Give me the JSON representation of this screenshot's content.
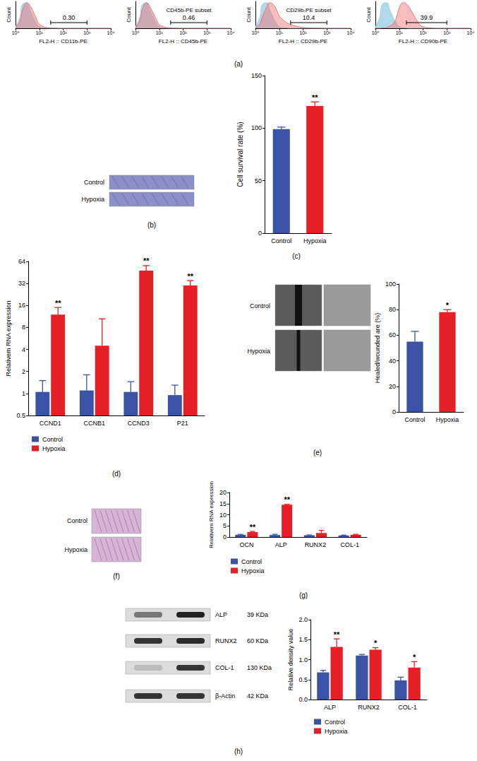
{
  "chart_data": [
    {
      "type": "area",
      "log": "x",
      "x_label": "FL2-H :: CD11b-PE",
      "y_label": "Count",
      "tick_labels": "x",
      "x": [
        1,
        1.5,
        2,
        3,
        4,
        6,
        8,
        10,
        15,
        20,
        30,
        50,
        70,
        100,
        200,
        500,
        1000,
        10000
      ],
      "xlim": [
        1,
        10000
      ],
      "xticks": [
        {
          "value": 1,
          "label": "10⁰"
        },
        {
          "value": 10,
          "label": "10¹"
        },
        {
          "value": 100,
          "label": "10²"
        },
        {
          "value": 1000,
          "label": "10³"
        },
        {
          "value": 10000,
          "label": "10⁴"
        }
      ],
      "ylim": [
        0,
        100
      ],
      "series": [
        {
          "color": "#a6d0e8",
          "values": [
            5,
            40,
            90,
            95,
            70,
            35,
            15,
            6,
            2,
            1,
            0,
            0,
            0,
            0,
            0,
            0,
            0,
            0
          ]
        },
        {
          "color": "#ef6f6f",
          "values": [
            3,
            25,
            70,
            95,
            85,
            55,
            30,
            15,
            6,
            3,
            1,
            0.5,
            0,
            0,
            0,
            0,
            0,
            0
          ]
        }
      ],
      "gate": {
        "range": [
          30,
          1000
        ],
        "label": "0.30"
      },
      "panel": "(a)"
    },
    {
      "type": "area",
      "log": "x",
      "x_label": "FL2-H :: CD45b-PE",
      "y_label": "Count",
      "tick_labels": "x",
      "x": [
        1,
        1.5,
        2,
        3,
        4,
        6,
        8,
        10,
        15,
        20,
        30,
        50,
        70,
        100,
        200,
        500,
        1000,
        10000
      ],
      "xlim": [
        1,
        10000
      ],
      "xticks": [
        {
          "value": 1,
          "label": "10⁰"
        },
        {
          "value": 10,
          "label": "10¹"
        },
        {
          "value": 100,
          "label": "10²"
        },
        {
          "value": 1000,
          "label": "10³"
        },
        {
          "value": 10000,
          "label": "10⁴"
        }
      ],
      "ylim": [
        0,
        100
      ],
      "series": [
        {
          "color": "#a6d0e8",
          "values": [
            5,
            40,
            90,
            95,
            70,
            35,
            15,
            6,
            2,
            1,
            0,
            0,
            0,
            0,
            0,
            0,
            0,
            0
          ]
        },
        {
          "color": "#ef6f6f",
          "values": [
            3,
            28,
            75,
            95,
            80,
            50,
            28,
            14,
            6,
            3,
            1.5,
            0.5,
            0.3,
            0,
            0,
            0,
            0,
            0
          ]
        }
      ],
      "gate": {
        "range": [
          30,
          1000
        ],
        "label": "0.46",
        "subset": "CD45b-PE subset"
      }
    },
    {
      "type": "area",
      "log": "x",
      "x_label": "FL2-H :: CD29b-PE",
      "y_label": "Count",
      "tick_labels": "x",
      "x": [
        1,
        1.5,
        2,
        3,
        4,
        6,
        8,
        10,
        15,
        20,
        30,
        50,
        70,
        100,
        200,
        500,
        1000,
        10000
      ],
      "xlim": [
        1,
        10000
      ],
      "xticks": [
        {
          "value": 1,
          "label": "10⁰"
        },
        {
          "value": 10,
          "label": "10¹"
        },
        {
          "value": 100,
          "label": "10²"
        },
        {
          "value": 1000,
          "label": "10³"
        },
        {
          "value": 10000,
          "label": "10⁴"
        }
      ],
      "ylim": [
        0,
        100
      ],
      "series": [
        {
          "color": "#a6d0e8",
          "values": [
            5,
            40,
            90,
            95,
            70,
            35,
            15,
            6,
            2,
            1,
            0,
            0,
            0,
            0,
            0,
            0,
            0,
            0
          ]
        },
        {
          "color": "#ef6f6f",
          "values": [
            2,
            15,
            45,
            80,
            95,
            85,
            65,
            45,
            30,
            22,
            14,
            8,
            5,
            3,
            1,
            0.5,
            0,
            0
          ]
        }
      ],
      "gate": {
        "range": [
          30,
          1000
        ],
        "label": "10.4",
        "subset": "CD29b-PE subset"
      }
    },
    {
      "type": "area",
      "log": "x",
      "x_label": "FL2-H :: CD90b-PE",
      "y_label": "Count",
      "tick_labels": "x",
      "x": [
        1,
        1.5,
        2,
        3,
        4,
        6,
        8,
        10,
        15,
        20,
        30,
        50,
        70,
        100,
        200,
        500,
        1000,
        10000
      ],
      "xlim": [
        1,
        10000
      ],
      "xticks": [
        {
          "value": 1,
          "label": "10⁰"
        },
        {
          "value": 10,
          "label": "10¹"
        },
        {
          "value": 100,
          "label": "10²"
        },
        {
          "value": 1000,
          "label": "10³"
        },
        {
          "value": 10000,
          "label": "10⁴"
        }
      ],
      "ylim": [
        0,
        100
      ],
      "series": [
        {
          "color": "#a6d0e8",
          "values": [
            5,
            40,
            90,
            95,
            70,
            35,
            15,
            6,
            2,
            1,
            0,
            0,
            0,
            0,
            0,
            0,
            0,
            0
          ]
        },
        {
          "color": "#ef6f6f",
          "values": [
            0,
            0,
            1,
            3,
            8,
            20,
            45,
            75,
            95,
            90,
            70,
            35,
            15,
            6,
            1,
            0,
            0,
            0
          ]
        }
      ],
      "gate": {
        "range": [
          20,
          1000
        ],
        "label": "39.9"
      }
    },
    {
      "type": "bar",
      "y_label": "Cell survival rate (%)",
      "categories": [
        "Control",
        "Hypoxia"
      ],
      "values": [
        99,
        121
      ],
      "errors": [
        2,
        4
      ],
      "significance": [
        null,
        "**"
      ],
      "colors": [
        "#3a53a4",
        "#e41f26"
      ],
      "ylim": [
        0,
        150
      ],
      "yticks": [
        0,
        50,
        100,
        150
      ],
      "grid": false,
      "panel": "(c)"
    },
    {
      "type": "bar",
      "log": "y",
      "y_label": "Relativem RNA expression",
      "categories": [
        "CCND1",
        "CCNB1",
        "CCND3",
        "P21"
      ],
      "series": [
        {
          "name": "Control",
          "color": "#3a53a4",
          "values": [
            1.05,
            1.1,
            1.05,
            0.95
          ],
          "errors": [
            0.45,
            0.7,
            0.4,
            0.35
          ]
        },
        {
          "name": "Hypoxia",
          "color": "#e41f26",
          "values": [
            12,
            4.5,
            48,
            30
          ],
          "errors": [
            3,
            6,
            8,
            5
          ],
          "significance": [
            "**",
            null,
            "**",
            "**"
          ]
        }
      ],
      "ylim": [
        0.5,
        64
      ],
      "yticks": [
        0.5,
        1,
        2,
        4,
        8,
        16,
        32,
        64
      ],
      "legend": "bottom-left",
      "grid": false,
      "panel": "(d)"
    },
    {
      "type": "bar",
      "y_label": "Healed/wounded are (%)",
      "categories": [
        "Control",
        "Hypoxia"
      ],
      "values": [
        55,
        78
      ],
      "errors": [
        8,
        2
      ],
      "significance": [
        null,
        "*"
      ],
      "colors": [
        "#3a53a4",
        "#e41f26"
      ],
      "ylim": [
        0,
        100
      ],
      "yticks": [
        0,
        20,
        40,
        60,
        80,
        100
      ],
      "grid": false
    },
    {
      "type": "bar",
      "y_label": "Relativem RNA expression",
      "categories": [
        "OCN",
        "ALP",
        "RUNX2",
        "COL-1"
      ],
      "series": [
        {
          "name": "Control",
          "color": "#3a53a4",
          "values": [
            1,
            0.9,
            0.8,
            0.7
          ],
          "errors": [
            0.2,
            0.3,
            0.15,
            0.15
          ]
        },
        {
          "name": "Hypoxia",
          "color": "#e41f26",
          "values": [
            2.2,
            14.5,
            1.8,
            1.0
          ],
          "errors": [
            0.3,
            0.2,
            1.2,
            0.2
          ],
          "significance": [
            "**",
            "**",
            null,
            null
          ]
        }
      ],
      "ylim": [
        0,
        20
      ],
      "yticks": [
        0,
        5,
        10,
        15,
        20
      ],
      "legend": "bottom-left",
      "grid": false,
      "panel": "(g)"
    },
    {
      "type": "bar",
      "y_label": "Relative density value",
      "categories": [
        "ALP",
        "RUNX2",
        "COL-1"
      ],
      "series": [
        {
          "name": "Control",
          "color": "#3a53a4",
          "values": [
            0.68,
            1.1,
            0.48
          ],
          "errors": [
            0.05,
            0.03,
            0.08
          ]
        },
        {
          "name": "Hypoxia",
          "color": "#e41f26",
          "values": [
            1.32,
            1.25,
            0.8
          ],
          "errors": [
            0.2,
            0.05,
            0.15
          ],
          "significance": [
            "**",
            "*",
            "*"
          ]
        }
      ],
      "ylim": [
        0,
        2
      ],
      "yticks": [
        {
          "value": 0,
          "label": "0.0"
        },
        0.5,
        {
          "value": 1,
          "label": "1.0"
        },
        1.5,
        {
          "value": 2,
          "label": "2.0"
        }
      ],
      "legend": "bottom-left",
      "grid": false
    }
  ],
  "images": [
    {
      "panel": "(b)",
      "rows": [
        "Control",
        "Hypoxia"
      ]
    },
    {
      "panel": "(e)",
      "rows": [
        "Control",
        "Hypoxia"
      ]
    },
    {
      "panel": "(f)",
      "rows": [
        "Control",
        "Hypoxia"
      ]
    }
  ],
  "blot": {
    "panel": "(h)",
    "rows": [
      {
        "name": "ALP",
        "size": "39 KDa"
      },
      {
        "name": "RUNX2",
        "size": "60 KDa"
      },
      {
        "name": "COL-1",
        "size": "130 KDa"
      },
      {
        "name": "β-Actin",
        "size": "42 KDa"
      }
    ]
  }
}
